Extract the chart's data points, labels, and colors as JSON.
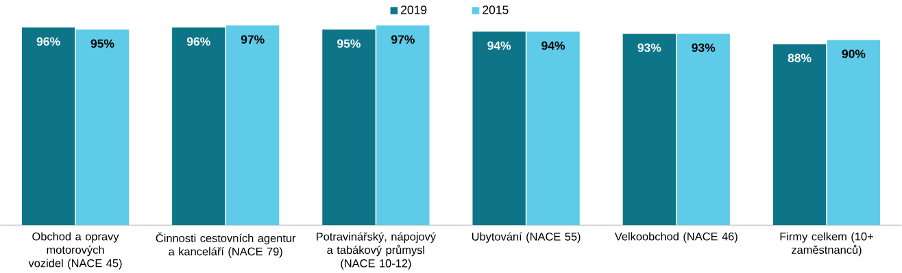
{
  "chart_data": {
    "type": "bar",
    "categories": [
      "Obchod a opravy motorových vozidel (NACE 45)",
      "Činnosti cestovních agentur a kanceláří (NACE 79)",
      "Potravinářský, nápojový a tabákový průmysl (NACE 10-12)",
      "Ubytování (NACE 55)",
      "Velkoobchod (NACE 46)",
      "Firmy celkem (10+ zaměstnanců)"
    ],
    "series": [
      {
        "name": "2019",
        "color": "#0e7589",
        "values": [
          96,
          96,
          95,
          94,
          93,
          88
        ],
        "value_labels": [
          "96%",
          "96%",
          "95%",
          "94%",
          "93%",
          "88%"
        ]
      },
      {
        "name": "2015",
        "color": "#5ecbe8",
        "values": [
          95,
          97,
          97,
          94,
          93,
          90
        ],
        "value_labels": [
          "95%",
          "97%",
          "97%",
          "94%",
          "93%",
          "90%"
        ]
      }
    ],
    "legend": "top"
  }
}
